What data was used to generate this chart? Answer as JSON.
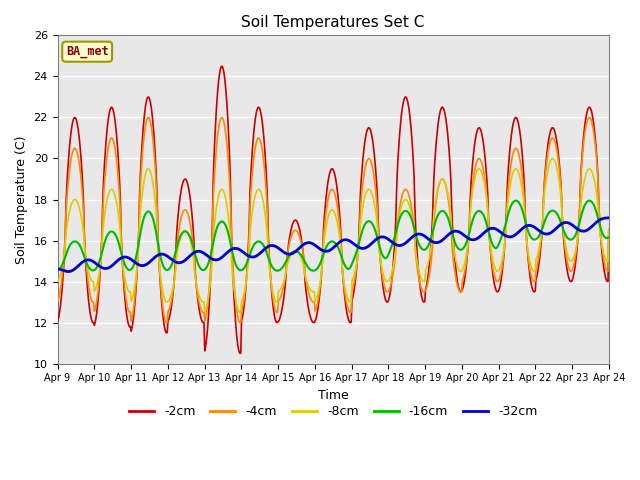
{
  "title": "Soil Temperatures Set C",
  "xlabel": "Time",
  "ylabel": "Soil Temperature (C)",
  "ylim": [
    10,
    26
  ],
  "xlim": [
    0,
    15
  ],
  "annotation": "BA_met",
  "background_color": "#e8e8e8",
  "grid_color": "white",
  "series": {
    "-2cm": {
      "color": "#cc0000",
      "lw": 1.2
    },
    "-4cm": {
      "color": "#ff8800",
      "lw": 1.2
    },
    "-8cm": {
      "color": "#ddcc00",
      "lw": 1.2
    },
    "-16cm": {
      "color": "#00bb00",
      "lw": 1.5
    },
    "-32cm": {
      "color": "#0000cc",
      "lw": 2.0
    }
  },
  "xtick_labels": [
    "Apr 9",
    "Apr 10",
    "Apr 11",
    "Apr 12",
    "Apr 13",
    "Apr 14",
    "Apr 15",
    "Apr 16",
    "Apr 17",
    "Apr 18",
    "Apr 19",
    "Apr 20",
    "Apr 21",
    "Apr 22",
    "Apr 23",
    "Apr 24"
  ],
  "ytick_values": [
    10,
    12,
    14,
    16,
    18,
    20,
    22,
    24,
    26
  ]
}
